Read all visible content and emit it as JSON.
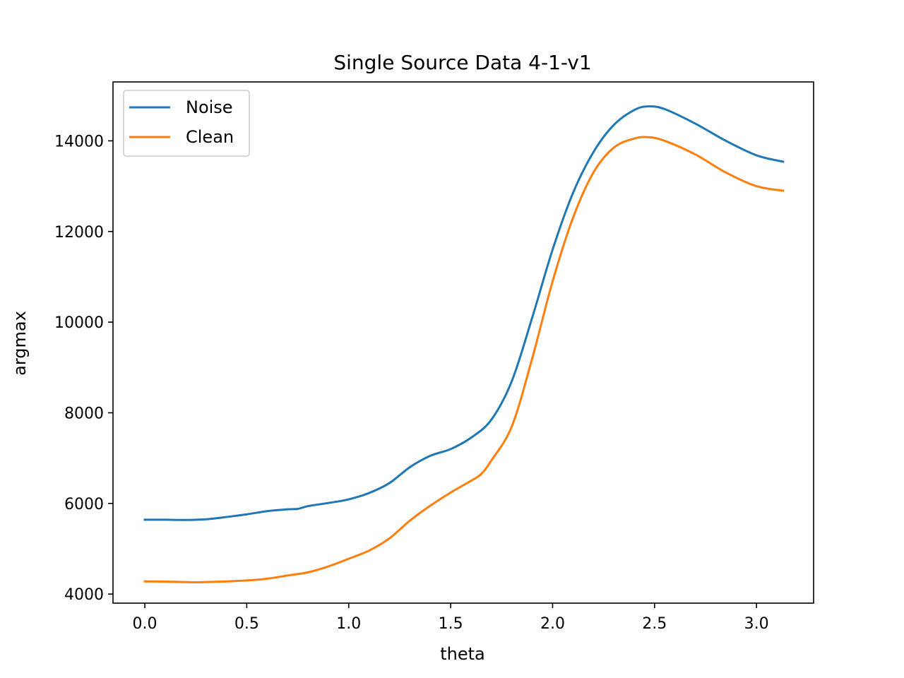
{
  "chart_data": {
    "type": "line",
    "title": "Single Source Data 4-1-v1",
    "xlabel": "theta",
    "ylabel": "argmax",
    "xlim": [
      -0.156,
      3.28
    ],
    "ylim": [
      3800,
      15300
    ],
    "xticks": [
      0.0,
      0.5,
      1.0,
      1.5,
      2.0,
      2.5,
      3.0
    ],
    "xtick_labels": [
      "0.0",
      "0.5",
      "1.0",
      "1.5",
      "2.0",
      "2.5",
      "3.0"
    ],
    "yticks": [
      4000,
      6000,
      8000,
      10000,
      12000,
      14000
    ],
    "ytick_labels": [
      "4000",
      "6000",
      "8000",
      "10000",
      "12000",
      "14000"
    ],
    "grid": false,
    "legend_position": "upper-left",
    "series": [
      {
        "name": "Noise",
        "color": "#1f77b4",
        "x": [
          0.0,
          0.1,
          0.2,
          0.3,
          0.4,
          0.5,
          0.6,
          0.7,
          0.75,
          0.8,
          0.9,
          1.0,
          1.1,
          1.2,
          1.3,
          1.4,
          1.5,
          1.6,
          1.7,
          1.8,
          1.9,
          2.0,
          2.1,
          2.2,
          2.3,
          2.4,
          2.47,
          2.55,
          2.7,
          2.85,
          3.0,
          3.13
        ],
        "y": [
          5640,
          5640,
          5635,
          5650,
          5700,
          5760,
          5830,
          5870,
          5880,
          5940,
          6010,
          6090,
          6230,
          6450,
          6800,
          7050,
          7200,
          7450,
          7850,
          8700,
          10100,
          11600,
          12850,
          13750,
          14350,
          14680,
          14760,
          14700,
          14380,
          14000,
          13680,
          13540
        ]
      },
      {
        "name": "Clean",
        "color": "#ff7f0e",
        "x": [
          0.0,
          0.1,
          0.2,
          0.25,
          0.3,
          0.4,
          0.5,
          0.6,
          0.7,
          0.8,
          0.9,
          1.0,
          1.1,
          1.2,
          1.3,
          1.4,
          1.5,
          1.6,
          1.65,
          1.7,
          1.8,
          1.9,
          2.0,
          2.1,
          2.2,
          2.3,
          2.4,
          2.47,
          2.55,
          2.7,
          2.85,
          3.0,
          3.13
        ],
        "y": [
          4280,
          4275,
          4265,
          4260,
          4265,
          4280,
          4300,
          4340,
          4410,
          4480,
          4610,
          4780,
          4960,
          5230,
          5620,
          5950,
          6240,
          6500,
          6650,
          6950,
          7700,
          9200,
          10900,
          12300,
          13300,
          13850,
          14050,
          14080,
          14000,
          13700,
          13300,
          13000,
          12900
        ]
      }
    ]
  }
}
